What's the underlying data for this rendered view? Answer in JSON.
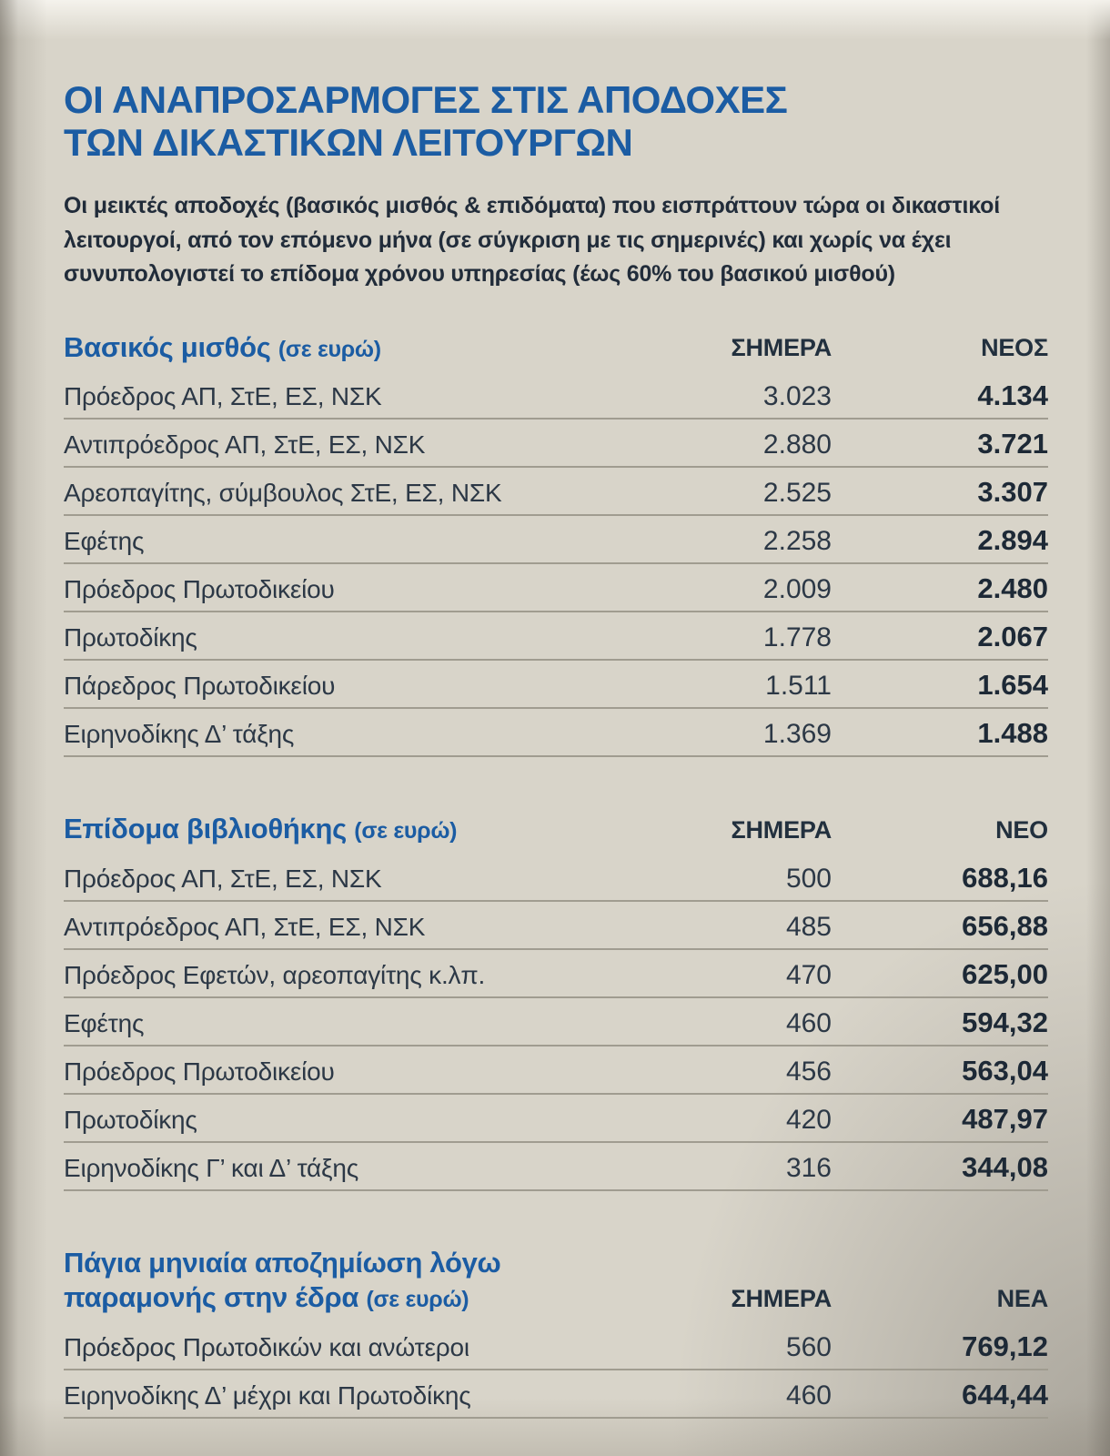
{
  "page": {
    "title_line1": "ΟΙ ΑΝΑΠΡΟΣΑΡΜΟΓΕΣ ΣΤΙΣ ΑΠΟΔΟΧΕΣ",
    "title_line2": "ΤΩΝ ΔΙΚΑΣΤΙΚΩΝ ΛΕΙΤΟΥΡΓΩΝ",
    "intro": "Οι μεικτές αποδοχές (βασικός μισθός & επιδόματα) που εισπράττουν τώρα οι δικαστικοί λειτουργοί,  από τον επόμενο μήνα (σε σύγκριση με τις σημερινές) και χωρίς να έχει συνυπολογιστεί το επίδομα χρόνου υπηρεσίας (έως 60% του βασικού μισθού)"
  },
  "colors": {
    "headline_blue": "#1b5ca3",
    "body_navy": "#2c3846",
    "paper": "#d8d4c9",
    "rule_gray": "#a09c90"
  },
  "tables": [
    {
      "title": "Βασικός μισθός",
      "title_suffix": "(σε ευρώ)",
      "col_today": "ΣΗΜΕΡΑ",
      "col_new": "ΝΕΟΣ",
      "rows": [
        {
          "label": "Πρόεδρος ΑΠ, ΣτΕ, ΕΣ, ΝΣΚ",
          "today": "3.023",
          "next": "4.134"
        },
        {
          "label": "Αντιπρόεδρος ΑΠ, ΣτΕ, ΕΣ, ΝΣΚ",
          "today": "2.880",
          "next": "3.721"
        },
        {
          "label": "Αρεοπαγίτης, σύμβουλος ΣτΕ, ΕΣ, ΝΣΚ",
          "today": "2.525",
          "next": "3.307"
        },
        {
          "label": "Εφέτης",
          "today": "2.258",
          "next": "2.894"
        },
        {
          "label": "Πρόεδρος Πρωτοδικείου",
          "today": "2.009",
          "next": "2.480"
        },
        {
          "label": "Πρωτοδίκης",
          "today": "1.778",
          "next": "2.067"
        },
        {
          "label": "Πάρεδρος Πρωτοδικείου",
          "today": "1.511",
          "next": "1.654"
        },
        {
          "label": "Ειρηνοδίκης Δ’ τάξης",
          "today": "1.369",
          "next": "1.488"
        }
      ]
    },
    {
      "title": "Επίδομα βιβλιοθήκης",
      "title_suffix": "(σε ευρώ)",
      "col_today": "ΣΗΜΕΡΑ",
      "col_new": "ΝΕΟ",
      "rows": [
        {
          "label": "Πρόεδρος ΑΠ, ΣτΕ, ΕΣ, ΝΣΚ",
          "today": "500",
          "next": "688,16"
        },
        {
          "label": "Αντιπρόεδρος ΑΠ, ΣτΕ, ΕΣ, ΝΣΚ",
          "today": "485",
          "next": "656,88"
        },
        {
          "label": "Πρόεδρος Εφετών, αρεοπαγίτης κ.λπ.",
          "today": "470",
          "next": "625,00"
        },
        {
          "label": "Εφέτης",
          "today": "460",
          "next": "594,32"
        },
        {
          "label": "Πρόεδρος Πρωτοδικείου",
          "today": "456",
          "next": "563,04"
        },
        {
          "label": "Πρωτοδίκης",
          "today": "420",
          "next": "487,97"
        },
        {
          "label": "Ειρηνοδίκης Γ’ και Δ’ τάξης",
          "today": "316",
          "next": "344,08"
        }
      ]
    },
    {
      "title": "Πάγια μηνιαία αποζημίωση λόγω παραμονής στην έδρα",
      "title_suffix": "(σε ευρώ)",
      "col_today": "ΣΗΜΕΡΑ",
      "col_new": "ΝΕΑ",
      "rows": [
        {
          "label": "Πρόεδρος Πρωτοδικών και ανώτεροι",
          "today": "560",
          "next": "769,12"
        },
        {
          "label": "Ειρηνοδίκης Δ’ μέχρι και Πρωτοδίκης",
          "today": "460",
          "next": "644,44"
        }
      ]
    }
  ]
}
